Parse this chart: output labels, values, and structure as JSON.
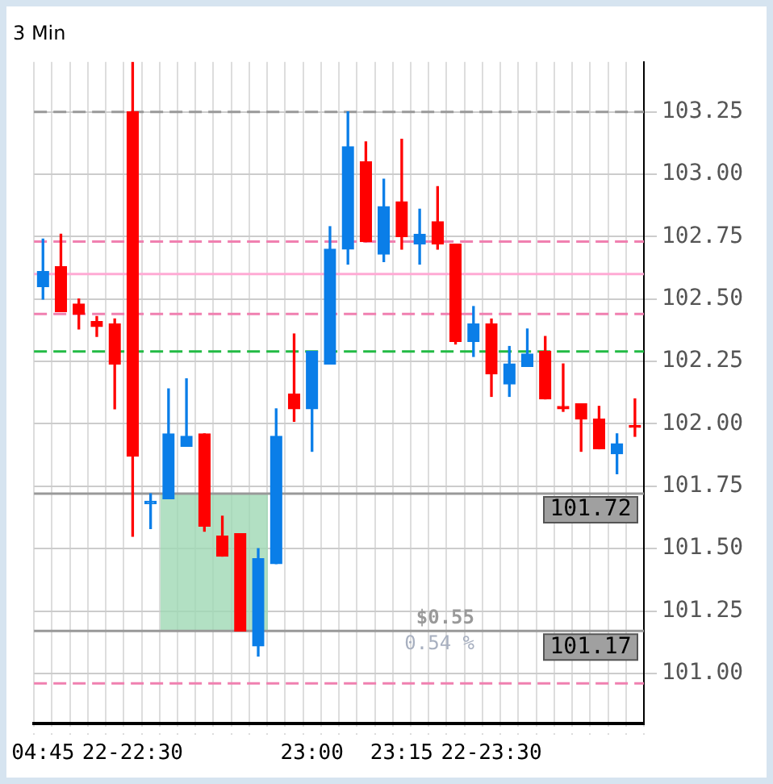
{
  "chart_data": {
    "type": "candlestick",
    "title": "3 Min",
    "categories": [
      "04:45",
      null,
      null,
      null,
      null,
      "22-22:30",
      null,
      null,
      null,
      null,
      null,
      null,
      null,
      null,
      null,
      "23:00",
      null,
      null,
      null,
      null,
      "23:15",
      null,
      null,
      null,
      null,
      "22-23:30",
      null,
      null,
      null,
      null,
      null,
      null,
      null,
      null
    ],
    "ohlc": [
      [
        102.55,
        102.74,
        102.5,
        102.61
      ],
      [
        102.63,
        102.76,
        102.45,
        102.45
      ],
      [
        102.48,
        102.5,
        102.38,
        102.44
      ],
      [
        102.41,
        102.43,
        102.35,
        102.39
      ],
      [
        102.4,
        102.42,
        102.06,
        102.24
      ],
      [
        103.25,
        103.45,
        101.55,
        101.87
      ],
      [
        101.68,
        101.72,
        101.58,
        101.69
      ],
      [
        101.7,
        102.14,
        101.7,
        101.96
      ],
      [
        101.91,
        102.18,
        101.91,
        101.95
      ],
      [
        101.96,
        101.96,
        101.57,
        101.59
      ],
      [
        101.55,
        101.63,
        101.47,
        101.47
      ],
      [
        101.56,
        101.56,
        101.17,
        101.17
      ],
      [
        101.11,
        101.5,
        101.07,
        101.46
      ],
      [
        101.44,
        102.06,
        101.44,
        101.95
      ],
      [
        102.12,
        102.36,
        102.01,
        102.06
      ],
      [
        102.06,
        102.29,
        101.89,
        102.29
      ],
      [
        102.24,
        102.79,
        102.24,
        102.7
      ],
      [
        102.7,
        103.25,
        102.64,
        103.11
      ],
      [
        103.05,
        103.13,
        102.73,
        102.73
      ],
      [
        102.68,
        102.98,
        102.65,
        102.87
      ],
      [
        102.89,
        103.14,
        102.7,
        102.75
      ],
      [
        102.72,
        102.86,
        102.64,
        102.76
      ],
      [
        102.81,
        102.95,
        102.7,
        102.72
      ],
      [
        102.72,
        102.72,
        102.32,
        102.33
      ],
      [
        102.33,
        102.47,
        102.27,
        102.4
      ],
      [
        102.4,
        102.42,
        102.11,
        102.2
      ],
      [
        102.16,
        102.31,
        102.11,
        102.24
      ],
      [
        102.23,
        102.38,
        102.23,
        102.28
      ],
      [
        102.29,
        102.35,
        102.1,
        102.1
      ],
      [
        102.07,
        102.24,
        102.05,
        102.06
      ],
      [
        102.08,
        102.08,
        101.89,
        102.02
      ],
      [
        102.02,
        102.07,
        101.9,
        101.9
      ],
      [
        101.88,
        101.96,
        101.8,
        101.92
      ],
      [
        101.99,
        102.1,
        101.95,
        101.99
      ]
    ],
    "colors": [
      "#0a7ee8",
      "#ff0000",
      "#ff0000",
      "#ff0000",
      "#ff0000",
      "#ff0000",
      "#0a7ee8",
      "#0a7ee8",
      "#0a7ee8",
      "#ff0000",
      "#ff0000",
      "#ff0000",
      "#0a7ee8",
      "#0a7ee8",
      "#ff0000",
      "#0a7ee8",
      "#0a7ee8",
      "#0a7ee8",
      "#ff0000",
      "#0a7ee8",
      "#ff0000",
      "#0a7ee8",
      "#ff0000",
      "#ff0000",
      "#0a7ee8",
      "#ff0000",
      "#0a7ee8",
      "#0a7ee8",
      "#ff0000",
      "#ff0000",
      "#ff0000",
      "#ff0000",
      "#0a7ee8",
      "#ff0000"
    ],
    "ylim": [
      100.8,
      103.45
    ],
    "yticks": [
      {
        "value": 101,
        "label": "101.00"
      },
      {
        "value": 101.25,
        "label": "101.25"
      },
      {
        "value": 101.5,
        "label": "101.50"
      },
      {
        "value": 101.75,
        "label": "101.75"
      },
      {
        "value": 102,
        "label": "102.00"
      },
      {
        "value": 102.25,
        "label": "102.25"
      },
      {
        "value": 102.5,
        "label": "102.50"
      },
      {
        "value": 102.75,
        "label": "102.75"
      },
      {
        "value": 103,
        "label": "103.00"
      },
      {
        "value": 103.25,
        "label": "103.25"
      }
    ],
    "grid": true,
    "ref_lines": [
      {
        "axis": "y",
        "value": 103.25,
        "color": "#999999",
        "line_style": "dashed"
      },
      {
        "axis": "y",
        "value": 102.73,
        "color": "#f080b0",
        "line_style": "dashed"
      },
      {
        "axis": "y",
        "value": 102.6,
        "color": "#ffaad4",
        "line_style": "solid"
      },
      {
        "axis": "y",
        "value": 102.44,
        "color": "#f080b0",
        "line_style": "dashed"
      },
      {
        "axis": "y",
        "value": 102.29,
        "color": "#22bb44",
        "line_style": "dashed"
      },
      {
        "axis": "y",
        "value": 100.96,
        "color": "#f080b0",
        "line_style": "dashed"
      },
      {
        "axis": "y",
        "value": 101.72,
        "label": "101.72",
        "color": "#999999",
        "line_style": "solid"
      },
      {
        "axis": "y",
        "value": 101.17,
        "label": "101.17",
        "color": "#999999",
        "line_style": "solid"
      }
    ],
    "bands": [
      {
        "axis": "y",
        "from": 101.17,
        "to": 101.72,
        "color": "#9fd8b4"
      }
    ],
    "annotations": [
      "$0.55",
      "0.54 %"
    ]
  }
}
